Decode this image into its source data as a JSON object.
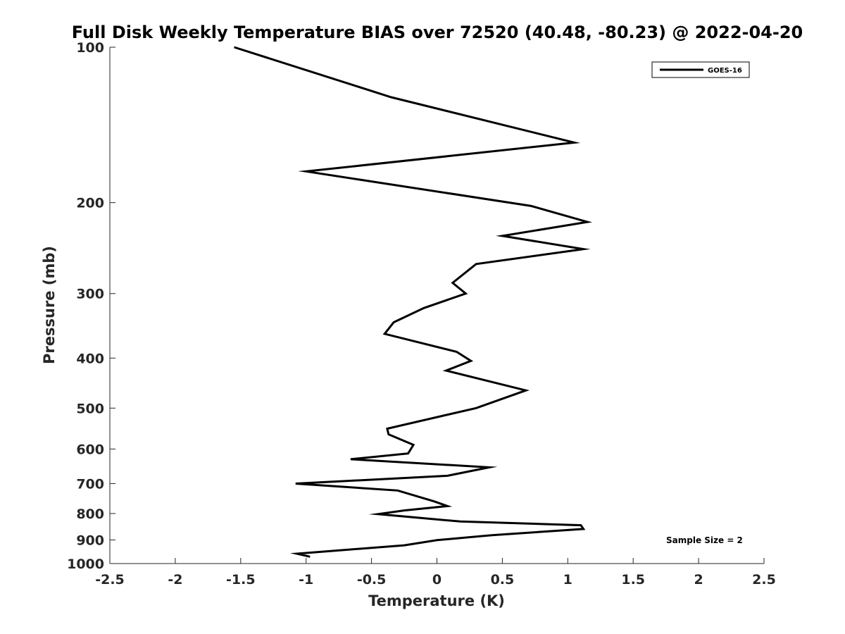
{
  "chart_data": {
    "type": "line",
    "title": "Full Disk Weekly Temperature BIAS over 72520 (40.48, -80.23) @ 2022-04-20",
    "xlabel": "Temperature (K)",
    "ylabel": "Pressure (mb)",
    "xlim": [
      -2.5,
      2.5
    ],
    "ylim": [
      100,
      1000
    ],
    "yscale": "log",
    "y_reversed": true,
    "grid": false,
    "legend_position": "top-right",
    "x_ticks": [
      -2.5,
      -2,
      -1.5,
      -1,
      -0.5,
      0,
      0.5,
      1,
      1.5,
      2,
      2.5
    ],
    "x_tick_labels": [
      "-2.5",
      "-2",
      "-1.5",
      "-1",
      "-0.5",
      "0",
      "0.5",
      "1",
      "1.5",
      "2",
      "2.5"
    ],
    "y_ticks": [
      100,
      200,
      300,
      400,
      500,
      600,
      700,
      800,
      900,
      1000
    ],
    "y_tick_labels": [
      "100",
      "200",
      "300",
      "400",
      "500",
      "600",
      "700",
      "800",
      "900",
      "1000"
    ],
    "series": [
      {
        "name": "GOES-16",
        "color": "#000000",
        "points": [
          [
            -1.55,
            100
          ],
          [
            -0.35,
            125
          ],
          [
            1.05,
            153
          ],
          [
            -1.0,
            174
          ],
          [
            0.72,
            203
          ],
          [
            1.15,
            218
          ],
          [
            0.5,
            232
          ],
          [
            1.12,
            246
          ],
          [
            0.3,
            263
          ],
          [
            0.12,
            286
          ],
          [
            0.22,
            300
          ],
          [
            -0.1,
            320
          ],
          [
            -0.33,
            341
          ],
          [
            -0.4,
            359
          ],
          [
            0.15,
            389
          ],
          [
            0.26,
            405
          ],
          [
            0.07,
            423
          ],
          [
            0.68,
            462
          ],
          [
            0.3,
            500
          ],
          [
            -0.38,
            548
          ],
          [
            -0.37,
            562
          ],
          [
            -0.18,
            589
          ],
          [
            -0.22,
            612
          ],
          [
            -0.66,
            628
          ],
          [
            0.4,
            651
          ],
          [
            0.08,
            676
          ],
          [
            -1.08,
            700
          ],
          [
            -0.3,
            722
          ],
          [
            -0.02,
            758
          ],
          [
            0.08,
            774
          ],
          [
            -0.25,
            789
          ],
          [
            -0.45,
            802
          ],
          [
            0.18,
            829
          ],
          [
            1.1,
            843
          ],
          [
            1.12,
            857
          ],
          [
            0.42,
            881
          ],
          [
            0.0,
            901
          ],
          [
            -0.25,
            922
          ],
          [
            -1.07,
            957
          ],
          [
            -0.97,
            970
          ]
        ]
      }
    ],
    "annotations": [
      "Sample Size = 2"
    ]
  }
}
